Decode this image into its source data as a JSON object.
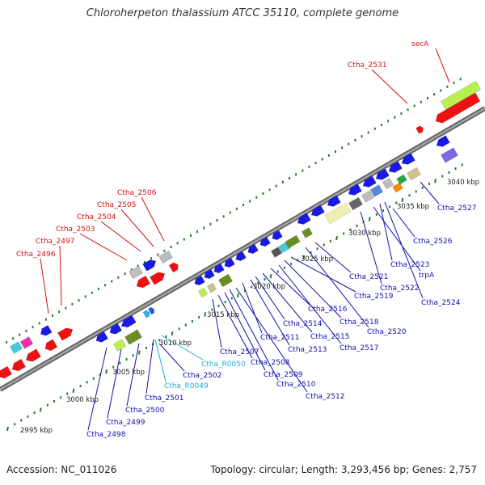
{
  "title": "Chloroherpeton thalassium ATCC 35110, complete genome",
  "footer": {
    "accession": "Accession: NC_011026",
    "summary": "Topology: circular; Length: 3,293,456 bp; Genes: 2,757"
  },
  "colors": {
    "cds": "#1a1ae6",
    "cds_outer": "#ee1111",
    "label_red": "#d81010",
    "label_blue": "#1010b0",
    "label_cyan": "#19b0d0",
    "tick": "#2a7a2a",
    "backbone": "#777777",
    "pale_yellow": "#f0eeb0",
    "olive": "#6b8e23",
    "lime": "#b8f050",
    "grey": "#bdbdbd",
    "cyan": "#44ccdd",
    "magenta": "#ee33aa",
    "purple": "#7b6be0",
    "orange": "#ff8800",
    "khaki": "#cfc38f"
  },
  "scale_labels": [
    "2995 kbp",
    "3000 kbp",
    "3005 kbp",
    "3010 kbp",
    "3015 kbp",
    "3020 kbp",
    "3025 kbp",
    "3030 kbp",
    "3035 kbp",
    "3040 kbp"
  ],
  "gene_labels_top": [
    "Ctha_2496",
    "Ctha_2497",
    "Ctha_2503",
    "Ctha_2504",
    "Ctha_2505",
    "Ctha_2506",
    "Ctha_2531",
    "secA"
  ],
  "gene_labels_bottom": [
    "Ctha_2498",
    "Ctha_2499",
    "Ctha_2500",
    "Ctha_2501",
    "Ctha_R0049",
    "Ctha_2502",
    "Ctha_R0050",
    "Ctha_2507",
    "Ctha_2508",
    "Ctha_2509",
    "Ctha_2510",
    "Ctha_2512",
    "Ctha_2511",
    "Ctha_2513",
    "Ctha_2514",
    "Ctha_2515",
    "Ctha_2516",
    "Ctha_2517",
    "Ctha_2518",
    "Ctha_2519",
    "Ctha_2520",
    "Ctha_2521",
    "Ctha_2522",
    "trpA",
    "Ctha_2523",
    "Ctha_2524",
    "Ctha_2526",
    "Ctha_2527"
  ]
}
